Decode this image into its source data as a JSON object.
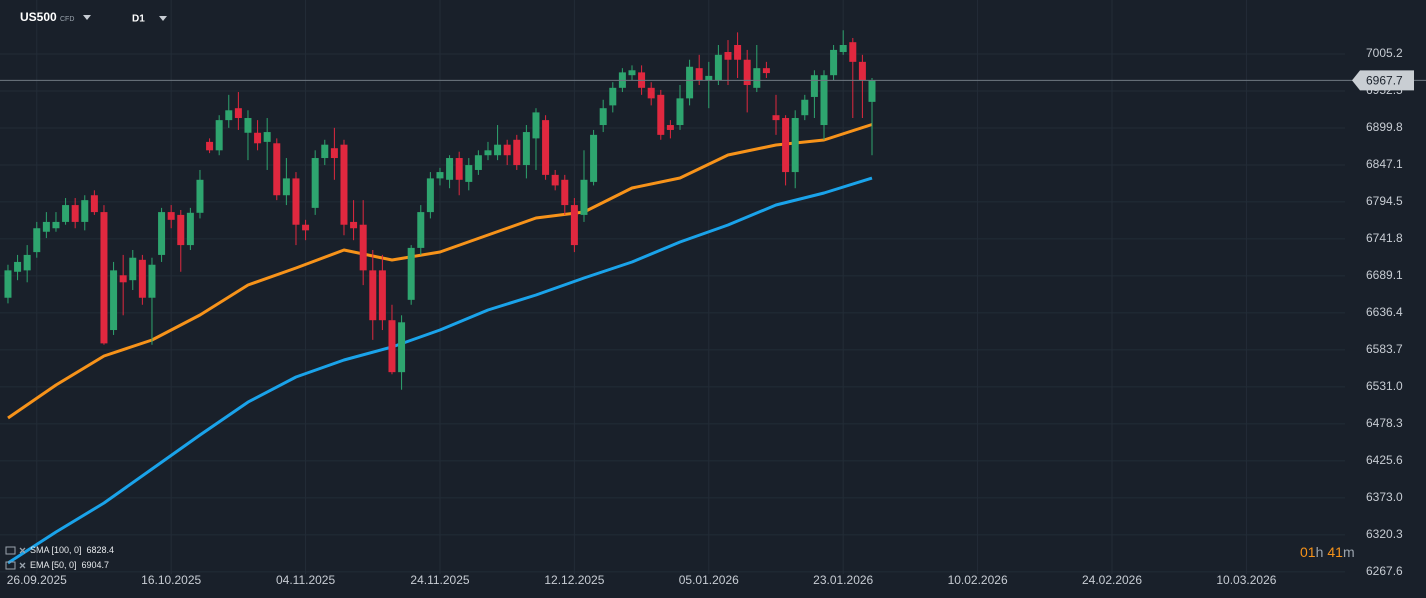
{
  "chart_data": {
    "type": "candlestick",
    "symbol": "US500",
    "symbol_tag": "CFD",
    "timeframe": "D1",
    "up_color": "#2ea56f",
    "down_color": "#e0283f",
    "grid": true,
    "xlim": [
      -0.83,
      139.27
    ],
    "xticks": [
      {
        "value": 3,
        "label": "26.09.2025"
      },
      {
        "value": 17,
        "label": "16.10.2025"
      },
      {
        "value": 31,
        "label": "04.11.2025"
      },
      {
        "value": 45,
        "label": "24.11.2025"
      },
      {
        "value": 59,
        "label": "12.12.2025"
      },
      {
        "value": 73,
        "label": "05.01.2026"
      },
      {
        "value": 87,
        "label": "23.01.2026"
      },
      {
        "value": 101,
        "label": "10.02.2026"
      },
      {
        "value": 115,
        "label": "24.02.2026"
      },
      {
        "value": 129,
        "label": "10.03.2026"
      }
    ],
    "ylim": [
      6264.5,
      7082.1
    ],
    "yticks": [
      7005.2,
      6952.5,
      6899.8,
      6847.1,
      6794.5,
      6741.8,
      6689.1,
      6636.4,
      6583.7,
      {
        "value": 6531,
        "label": "6531.0"
      },
      6478.3,
      6425.6,
      {
        "value": 6373,
        "label": "6373.0"
      },
      6320.3,
      6267.6
    ],
    "last_price": 6967.7,
    "open": [
      6658,
      6695,
      6697,
      6723,
      6752,
      6757,
      6766,
      6790,
      6766,
      6804,
      6780,
      6612,
      6690,
      6683,
      6712,
      6658,
      6719,
      6780,
      6776,
      6733,
      6779,
      6880,
      6868,
      6911,
      6928,
      6893,
      6893,
      6880,
      6878,
      6804,
      6828,
      6762,
      6786,
      6857,
      6871,
      6876,
      6766,
      6762,
      6697,
      6697,
      6626,
      6552,
      6655,
      6729,
      6780,
      6828,
      6826,
      6857,
      6823,
      6840,
      6861,
      6861,
      6876,
      6883,
      6847,
      6885,
      6911,
      6833,
      6826,
      6790,
      6776,
      6823,
      6904,
      6932,
      6957,
      6975,
      6979,
      6957,
      6947,
      6904,
      6904,
      6942,
      6985,
      6968,
      6968,
      7008,
      7018,
      6997,
      6957,
      6985,
      6918,
      6914,
      6837,
      6918,
      6944,
      6904,
      6975,
      7008,
      7022,
      6994,
      6937
    ],
    "high": [
      6705,
      6719,
      6733,
      6766,
      6780,
      6780,
      6800,
      6800,
      6804,
      6811,
      6790,
      6709,
      6719,
      6726,
      6719,
      6715,
      6786,
      6790,
      6783,
      6786,
      6840,
      6885,
      6918,
      6947,
      6951,
      6925,
      6911,
      6914,
      6885,
      6857,
      6837,
      6769,
      6868,
      6883,
      6900,
      6883,
      6797,
      6797,
      6726,
      6719,
      6648,
      6633,
      6733,
      6790,
      6837,
      6843,
      6861,
      6866,
      6857,
      6868,
      6880,
      6904,
      6883,
      6890,
      6904,
      6928,
      6918,
      6840,
      6833,
      6800,
      6868,
      6897,
      6940,
      6965,
      6985,
      6989,
      6989,
      6965,
      6954,
      6911,
      6961,
      6997,
      7004,
      6994,
      7018,
      7025,
      7036,
      7011,
      7018,
      6994,
      6947,
      6918,
      6925,
      6947,
      6982,
      6982,
      7018,
      7039,
      7028,
      7004,
      6971
    ],
    "low": [
      6650,
      6683,
      6680,
      6715,
      6743,
      6752,
      6762,
      6757,
      6754,
      6776,
      6591,
      6605,
      6633,
      6669,
      6648,
      6591,
      6709,
      6757,
      6695,
      6726,
      6771,
      6864,
      6861,
      6900,
      6897,
      6854,
      6868,
      6840,
      6797,
      6790,
      6733,
      6740,
      6776,
      6847,
      6826,
      6747,
      6740,
      6676,
      6598,
      6612,
      6549,
      6527,
      6648,
      6719,
      6771,
      6818,
      6814,
      6804,
      6811,
      6833,
      6854,
      6854,
      6847,
      6840,
      6828,
      6840,
      6826,
      6811,
      6776,
      6723,
      6766,
      6818,
      6894,
      6922,
      6951,
      6968,
      6947,
      6932,
      6883,
      6885,
      6897,
      6932,
      6961,
      6928,
      6961,
      6961,
      6971,
      6922,
      6951,
      6971,
      6890,
      6818,
      6814,
      6911,
      6914,
      6883,
      6968,
      7004,
      6914,
      6914,
      6861
    ],
    "close": [
      6697,
      6709,
      6719,
      6757,
      6766,
      6766,
      6790,
      6766,
      6797,
      6780,
      6593,
      6697,
      6680,
      6715,
      6658,
      6705,
      6780,
      6769,
      6733,
      6779,
      6826,
      6868,
      6911,
      6925,
      6914,
      6914,
      6878,
      6894,
      6804,
      6828,
      6762,
      6754,
      6857,
      6876,
      6857,
      6762,
      6757,
      6697,
      6626,
      6626,
      6552,
      6623,
      6729,
      6780,
      6828,
      6837,
      6857,
      6826,
      6847,
      6861,
      6868,
      6876,
      6861,
      6847,
      6894,
      6922,
      6833,
      6818,
      6790,
      6733,
      6826,
      6890,
      6928,
      6957,
      6979,
      6982,
      6957,
      6942,
      6890,
      6897,
      6942,
      6987,
      6968,
      6974,
      7004,
      6997,
      6997,
      6961,
      6985,
      6978,
      6911,
      6837,
      6914,
      6940,
      6975,
      6975,
      7011,
      7018,
      6994,
      6968,
      6967.7
    ],
    "indicators": [
      {
        "name": "SMA [100, 0]",
        "last_value": 6828.4,
        "color": "#1aa3ea",
        "x": [
          0,
          5,
          10,
          15,
          20,
          25,
          30,
          35,
          40,
          45,
          50,
          55,
          60,
          65,
          70,
          75,
          80,
          85,
          90
        ],
        "values": [
          6280.1,
          6324.3,
          6365.6,
          6414.0,
          6462.5,
          6509.4,
          6545.1,
          6569.3,
          6587.8,
          6612.0,
          6640.5,
          6661.9,
          6686.1,
          6708.9,
          6737.4,
          6761.6,
          6790.1,
          6807.2,
          6828.4
        ]
      },
      {
        "name": "EMA [50, 0]",
        "last_value": 6904.7,
        "color": "#f7931a",
        "x": [
          0,
          5,
          10,
          15,
          20,
          25,
          30,
          35,
          40,
          45,
          50,
          55,
          60,
          65,
          70,
          75,
          80,
          85,
          90
        ],
        "values": [
          6486.7,
          6533.7,
          6575.0,
          6597.8,
          6633.4,
          6676.1,
          6700.3,
          6726.0,
          6711.7,
          6723.1,
          6747.3,
          6771.6,
          6780.1,
          6814.3,
          6828.5,
          6861.3,
          6875.5,
          6882.7,
          6904.7
        ]
      }
    ],
    "timer": {
      "hours": "01",
      "hours_unit": "h",
      "minutes": "41",
      "minutes_unit": "m"
    }
  }
}
